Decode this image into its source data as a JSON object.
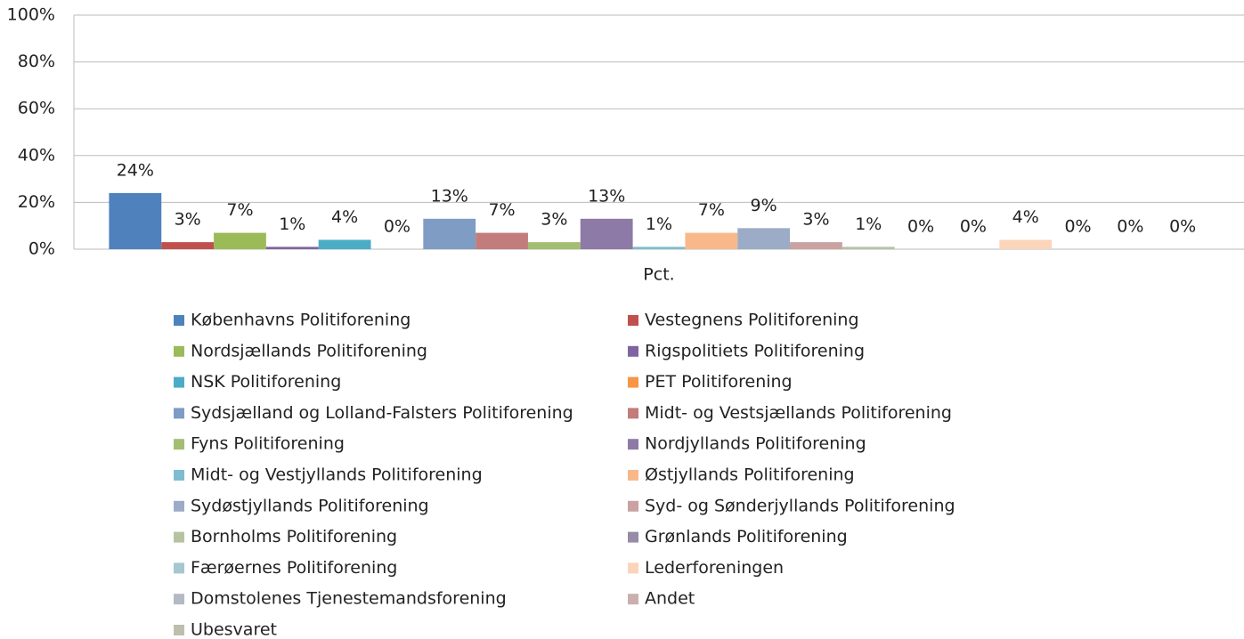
{
  "chart_data": {
    "type": "bar",
    "categories": [
      "Pct."
    ],
    "ylim": [
      0,
      100
    ],
    "yticks": [
      {
        "value": 0,
        "label": "0%"
      },
      {
        "value": 20,
        "label": "20%"
      },
      {
        "value": 40,
        "label": "40%"
      },
      {
        "value": 60,
        "label": "60%"
      },
      {
        "value": 80,
        "label": "80%"
      },
      {
        "value": 100,
        "label": "100%"
      }
    ],
    "grid": true,
    "legend": "bottom",
    "series": [
      {
        "name": "Københavns Politiforening",
        "color": "#4f81bd",
        "values": [
          24
        ],
        "value_labels": [
          "24%"
        ]
      },
      {
        "name": "Vestegnens Politiforening",
        "color": "#c0504d",
        "values": [
          3
        ],
        "value_labels": [
          "3%"
        ]
      },
      {
        "name": "Nordsjællands Politiforening",
        "color": "#9bbb59",
        "values": [
          7
        ],
        "value_labels": [
          "7%"
        ]
      },
      {
        "name": "Rigspolitiets Politiforening",
        "color": "#8064a2",
        "values": [
          1
        ],
        "value_labels": [
          "1%"
        ]
      },
      {
        "name": "NSK Politiforening",
        "color": "#4bacc6",
        "values": [
          4
        ],
        "value_labels": [
          "4%"
        ]
      },
      {
        "name": "PET Politiforening",
        "color": "#f79646",
        "values": [
          0
        ],
        "value_labels": [
          "0%"
        ]
      },
      {
        "name": "Sydsjælland og Lolland-Falsters Politiforening",
        "color": "#7f9cc4",
        "values": [
          13
        ],
        "value_labels": [
          "13%"
        ]
      },
      {
        "name": "Midt- og Vestsjællands Politiforening",
        "color": "#c27c7b",
        "values": [
          7
        ],
        "value_labels": [
          "7%"
        ]
      },
      {
        "name": "Fyns Politiforening",
        "color": "#a3bd72",
        "values": [
          3
        ],
        "value_labels": [
          "3%"
        ]
      },
      {
        "name": "Nordjyllands Politiforening",
        "color": "#8d7aa6",
        "values": [
          13
        ],
        "value_labels": [
          "13%"
        ]
      },
      {
        "name": "Midt- og Vestjyllands Politiforening",
        "color": "#7ebdd1",
        "values": [
          1
        ],
        "value_labels": [
          "1%"
        ]
      },
      {
        "name": "Østjyllands Politiforening",
        "color": "#f9b88a",
        "values": [
          7
        ],
        "value_labels": [
          "7%"
        ]
      },
      {
        "name": "Sydøstjyllands Politiforening",
        "color": "#9cacc7",
        "values": [
          9
        ],
        "value_labels": [
          "9%"
        ]
      },
      {
        "name": "Syd- og Sønderjyllands Politiforening",
        "color": "#c9a2a1",
        "values": [
          3
        ],
        "value_labels": [
          "3%"
        ]
      },
      {
        "name": "Bornholms Politiforening",
        "color": "#b5c3a3",
        "values": [
          1
        ],
        "value_labels": [
          "1%"
        ]
      },
      {
        "name": "Grønlands Politiforening",
        "color": "#978ba7",
        "values": [
          0
        ],
        "value_labels": [
          "0%"
        ]
      },
      {
        "name": "Færøernes Politiforening",
        "color": "#a7c6d0",
        "values": [
          0
        ],
        "value_labels": [
          "0%"
        ]
      },
      {
        "name": "Lederforeningen",
        "color": "#fbd5b9",
        "values": [
          4
        ],
        "value_labels": [
          "4%"
        ]
      },
      {
        "name": "Domstolenes Tjenestemandsforening",
        "color": "#b3b9c5",
        "values": [
          0
        ],
        "value_labels": [
          "0%"
        ]
      },
      {
        "name": "Andet",
        "color": "#c9b0af",
        "values": [
          0
        ],
        "value_labels": [
          "0%"
        ]
      },
      {
        "name": "Ubesvaret",
        "color": "#bcbfae",
        "values": [
          0
        ],
        "value_labels": [
          "0%"
        ]
      }
    ]
  }
}
